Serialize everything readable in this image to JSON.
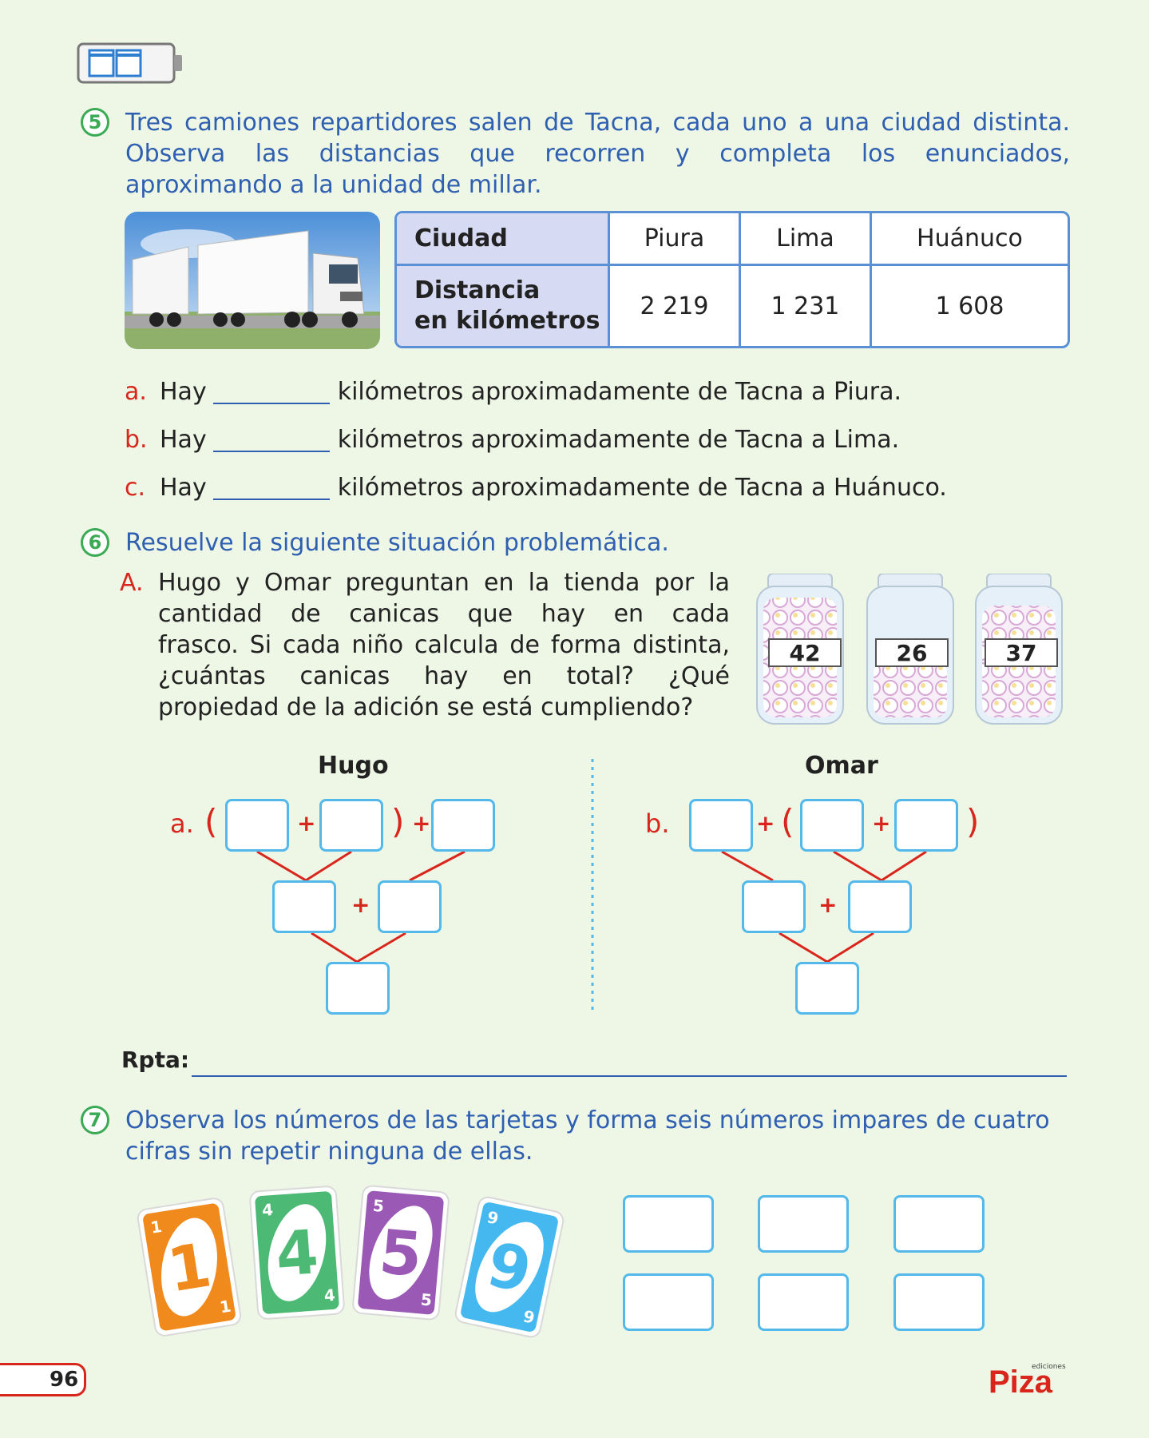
{
  "ex5": {
    "number": "5",
    "instruction": "Tres camiones repartidores salen de Tacna, cada uno a una ciudad distinta. Observa las distancias que recorren y completa los enunciados, aproximando a la unidad de millar.",
    "line1": "Tres camiones repartidores salen de Tacna, cada uno a una ciudad distinta.",
    "line2": "Observa las distancias que recorren y completa los enunciados,",
    "line3": "aproximando a la unidad de millar.",
    "table": {
      "row1_header": "Ciudad",
      "row2_header_1": "Distancia",
      "row2_header_2": "en kilómetros",
      "cities": [
        "Piura",
        "Lima",
        "Huánuco"
      ],
      "distances": [
        "2 219",
        "1 231",
        "1 608"
      ]
    },
    "items": [
      {
        "label": "a.",
        "pre": "Hay",
        "post": "kilómetros aproximadamente de Tacna a Piura."
      },
      {
        "label": "b.",
        "pre": "Hay",
        "post": "kilómetros aproximadamente de Tacna a Lima."
      },
      {
        "label": "c.",
        "pre": "Hay",
        "post": "kilómetros aproximadamente de Tacna a Huánuco."
      }
    ]
  },
  "ex6": {
    "number": "6",
    "instruction": "Resuelve la siguiente situación problemática.",
    "part_label": "A.",
    "problem_lines": [
      "Hugo y Omar preguntan en la tienda por la",
      "cantidad de canicas que hay en cada",
      "frasco. Si cada niño calcula de forma distinta,",
      "¿cuántas canicas hay en total? ¿Qué",
      "propiedad de la adición se está cumpliendo?"
    ],
    "jars": [
      "42",
      "26",
      "37"
    ],
    "hugo": {
      "title": "Hugo",
      "label": "a.",
      "open": "(",
      "plus": "+",
      "close": ")"
    },
    "omar": {
      "title": "Omar",
      "label": "b.",
      "open": "(",
      "plus": "+",
      "close": ")"
    },
    "answer_label": "Rpta:"
  },
  "ex7": {
    "number": "7",
    "line1": "Observa los números de las tarjetas y forma seis números impares de cuatro",
    "line2": "cifras sin repetir ninguna de ellas.",
    "cards": [
      {
        "digit": "1",
        "color": "#f08a1c"
      },
      {
        "digit": "4",
        "color": "#4cb974"
      },
      {
        "digit": "5",
        "color": "#9b59b6"
      },
      {
        "digit": "9",
        "color": "#45b8ef"
      }
    ]
  },
  "footer": {
    "page_number": "96",
    "brand": "Piza",
    "brand_small": "ediciones"
  },
  "colors": {
    "background": "#eef7e6",
    "instruction_blue": "#2f5fb0",
    "accent_red": "#d9261c",
    "box_blue": "#53b8ea",
    "circle_green": "#3aaa55"
  }
}
